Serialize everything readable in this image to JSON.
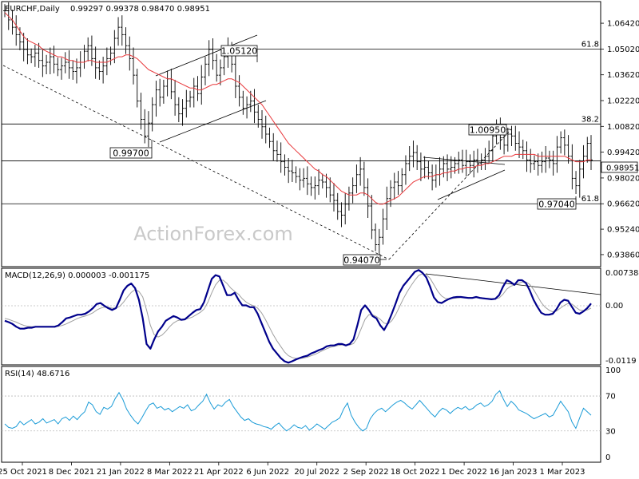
{
  "chart_data": [
    {
      "type": "candlestick",
      "title": "EURCHF,Daily",
      "ohlc_readout": "0.99297 0.99378 0.98470 0.98951",
      "y_ticks": [
        0.9386,
        0.9524,
        0.9662,
        0.9802,
        0.9942,
        1.0082,
        1.0222,
        1.0362,
        1.0502,
        1.0642
      ],
      "y_tick_labels": [
        "0.93860",
        "0.95240",
        "0.96620",
        "0.98020",
        "0.99420",
        "1.00820",
        "1.02220",
        "1.03620",
        "1.05020",
        "1.06420"
      ],
      "ylim": [
        0.9325,
        1.0755
      ],
      "x_labels": [
        "25 Oct 2021",
        "8 Dec 2021",
        "21 Jan 2022",
        "8 Mar 2022",
        "21 Apr 2022",
        "6 Jun 2022",
        "20 Jul 2022",
        "2 Sep 2022",
        "18 Oct 2022",
        "1 Dec 2022",
        "16 Jan 2023",
        "1 Mar 2023"
      ],
      "series": [
        {
          "values": [
            1.071,
            1.066,
            1.062,
            1.058,
            1.054,
            1.05,
            1.047,
            1.046,
            1.048,
            1.044,
            1.041,
            1.043,
            1.046,
            1.042,
            1.039,
            1.041,
            1.043,
            1.04,
            1.038,
            1.04,
            1.043,
            1.049,
            1.052,
            1.045,
            1.04,
            1.038,
            1.041,
            1.045,
            1.048,
            1.056,
            1.062,
            1.058,
            1.052,
            1.045,
            1.036,
            1.022,
            1.012,
            1.003,
            1.01,
            1.02,
            1.028,
            1.024,
            1.03,
            1.034,
            1.027,
            1.02,
            1.015,
            1.018,
            1.022,
            1.024,
            1.03,
            1.026,
            1.035,
            1.042,
            1.05,
            1.044,
            1.036,
            1.04,
            1.046,
            1.05,
            1.042,
            1.03,
            1.024,
            1.018,
            1.02,
            1.022,
            1.016,
            1.012,
            1.008,
            1.004,
            1.0,
            0.995,
            0.993,
            0.989,
            0.986,
            0.984,
            0.983,
            0.981,
            0.979,
            0.98,
            0.977,
            0.975,
            0.976,
            0.979,
            0.978,
            0.975,
            0.971,
            0.968,
            0.962,
            0.96,
            0.966,
            0.972,
            0.976,
            0.982,
            0.985,
            0.975,
            0.965,
            0.952,
            0.944,
            0.948,
            0.958,
            0.969,
            0.975,
            0.978,
            0.976,
            0.982,
            0.988,
            0.992,
            0.994,
            0.989,
            0.985,
            0.986,
            0.983,
            0.979,
            0.982,
            0.985,
            0.988,
            0.985,
            0.986,
            0.988,
            0.99,
            0.987,
            0.989,
            0.987,
            0.99,
            0.988,
            0.99,
            0.992,
            0.995,
            1.003,
            1.008,
            1.002,
            0.998,
            1.004,
            1.003,
            0.999,
            0.997,
            0.995,
            0.99,
            0.988,
            0.989,
            0.987,
            0.989,
            0.991,
            0.99,
            0.988,
            0.997,
            1.002,
            0.998,
            0.992,
            0.98,
            0.976,
            0.985,
            0.992,
            0.999,
            0.99
          ],
          "color": "#000000"
        },
        {
          "values": [
            1.07,
            1.068,
            1.066,
            1.063,
            1.06,
            1.057,
            1.055,
            1.054,
            1.053,
            1.052,
            1.05,
            1.049,
            1.048,
            1.047,
            1.046,
            1.046,
            1.045,
            1.044,
            1.044,
            1.043,
            1.043,
            1.043,
            1.044,
            1.044,
            1.043,
            1.043,
            1.043,
            1.043,
            1.044,
            1.045,
            1.046,
            1.046,
            1.047,
            1.047,
            1.046,
            1.045,
            1.043,
            1.041,
            1.039,
            1.038,
            1.037,
            1.036,
            1.035,
            1.034,
            1.034,
            1.033,
            1.032,
            1.031,
            1.03,
            1.029,
            1.029,
            1.028,
            1.028,
            1.029,
            1.03,
            1.031,
            1.031,
            1.032,
            1.033,
            1.034,
            1.034,
            1.033,
            1.032,
            1.03,
            1.028,
            1.026,
            1.024,
            1.022,
            1.02,
            1.017,
            1.014,
            1.011,
            1.008,
            1.005,
            1.002,
            0.999,
            0.997,
            0.995,
            0.993,
            0.991,
            0.989,
            0.987,
            0.985,
            0.984,
            0.982,
            0.981,
            0.979,
            0.977,
            0.975,
            0.973,
            0.972,
            0.971,
            0.971,
            0.971,
            0.972,
            0.972,
            0.971,
            0.969,
            0.967,
            0.966,
            0.966,
            0.967,
            0.968,
            0.969,
            0.97,
            0.972,
            0.974,
            0.976,
            0.978,
            0.979,
            0.98,
            0.981,
            0.981,
            0.981,
            0.982,
            0.982,
            0.983,
            0.983,
            0.984,
            0.984,
            0.985,
            0.985,
            0.986,
            0.986,
            0.986,
            0.987,
            0.987,
            0.988,
            0.988,
            0.989,
            0.99,
            0.991,
            0.992,
            0.992,
            0.992,
            0.993,
            0.993,
            0.993,
            0.993,
            0.993,
            0.993,
            0.992,
            0.992,
            0.992,
            0.992,
            0.992,
            0.992,
            0.992,
            0.992,
            0.991,
            0.99,
            0.989,
            0.989,
            0.989,
            0.99,
            0.99
          ],
          "color": "#e8383b"
        }
      ],
      "horizontal_lines": [
        {
          "value": 1.0502,
          "label": "61.8"
        },
        {
          "value": 1.0095,
          "label": "38.2"
        },
        {
          "value": 0.98951,
          "label": ""
        },
        {
          "value": 0.9662,
          "label": "61.8"
        }
      ],
      "annotations": [
        "1.05120",
        "0.99700",
        "1.00950",
        "0.97040",
        "0.94070"
      ],
      "current_price_label": "0.98951",
      "watermark": "ActionForex.com"
    },
    {
      "type": "line",
      "title": "MACD(12,26,9) 0.000003 -0.001175",
      "y_tick_labels": [
        "0.007384",
        "0.00",
        "-0.0119"
      ],
      "ylim": [
        -0.0128,
        0.0076
      ],
      "series": [
        {
          "values": [
            -0.0035,
            -0.0038,
            -0.0042,
            -0.0048,
            -0.0052,
            -0.0052,
            -0.005,
            -0.005,
            -0.0048,
            -0.0048,
            -0.0048,
            -0.0048,
            -0.0048,
            -0.0048,
            -0.0045,
            -0.0038,
            -0.003,
            -0.0028,
            -0.0025,
            -0.0022,
            -0.0022,
            -0.002,
            -0.0015,
            -0.0008,
            0.0001,
            0.0003,
            -0.0003,
            -0.0008,
            -0.0012,
            -0.0008,
            0.001,
            0.003,
            0.004,
            0.0045,
            0.0035,
            0.001,
            -0.003,
            -0.0085,
            -0.0095,
            -0.0075,
            -0.0058,
            -0.0048,
            -0.0035,
            -0.003,
            -0.0025,
            -0.0028,
            -0.0033,
            -0.0032,
            -0.0025,
            -0.0018,
            -0.0012,
            -0.001,
            0.0005,
            0.003,
            0.0055,
            0.0063,
            0.006,
            0.004,
            0.002,
            0.002,
            0.0025,
            0.001,
            -0.0002,
            -0.0002,
            -0.0006,
            -0.0006,
            -0.002,
            -0.004,
            -0.006,
            -0.008,
            -0.0095,
            -0.0105,
            -0.0115,
            -0.0122,
            -0.0125,
            -0.0122,
            -0.0118,
            -0.0115,
            -0.0112,
            -0.011,
            -0.0105,
            -0.0102,
            -0.0098,
            -0.0095,
            -0.009,
            -0.0088,
            -0.0088,
            -0.0085,
            -0.0085,
            -0.0088,
            -0.0085,
            -0.0075,
            -0.0045,
            -0.0012,
            -0.0002,
            -0.0012,
            -0.0025,
            -0.003,
            -0.0045,
            -0.0055,
            -0.004,
            -0.002,
            0.0002,
            0.0025,
            0.004,
            0.005,
            0.006,
            0.007,
            0.0074,
            0.0068,
            0.0058,
            0.0038,
            0.0015,
            0.0005,
            0.0003,
            0.0008,
            0.0012,
            0.0015,
            0.0016,
            0.0016,
            0.0015,
            0.0014,
            0.0014,
            0.0016,
            0.0014,
            0.0013,
            0.0012,
            0.0011,
            0.0012,
            0.002,
            0.0038,
            0.0052,
            0.0048,
            0.0042,
            0.0052,
            0.0052,
            0.0046,
            0.003,
            0.001,
            -0.0005,
            -0.0018,
            -0.0022,
            -0.0022,
            -0.002,
            -0.001,
            0.0004,
            0.001,
            0.0008,
            -0.0005,
            -0.0018,
            -0.002,
            -0.0015,
            -0.0008,
            0.0002
          ],
          "color": "#00008b"
        },
        {
          "values": [
            -0.003,
            -0.0032,
            -0.0035,
            -0.0038,
            -0.0042,
            -0.0045,
            -0.0047,
            -0.0048,
            -0.0048,
            -0.0048,
            -0.0048,
            -0.0048,
            -0.0048,
            -0.0048,
            -0.0047,
            -0.0045,
            -0.0042,
            -0.0038,
            -0.0034,
            -0.003,
            -0.0027,
            -0.0025,
            -0.0022,
            -0.0018,
            -0.0012,
            -0.0008,
            -0.0006,
            -0.0006,
            -0.0008,
            -0.0008,
            -0.0004,
            0.0005,
            0.0016,
            0.0026,
            0.0032,
            0.0028,
            0.0016,
            -0.0012,
            -0.0045,
            -0.0065,
            -0.007,
            -0.0066,
            -0.0058,
            -0.0048,
            -0.004,
            -0.0035,
            -0.0033,
            -0.0032,
            -0.003,
            -0.0027,
            -0.0022,
            -0.0017,
            -0.001,
            0.0005,
            0.0025,
            0.0042,
            0.0052,
            0.0052,
            0.0045,
            0.0035,
            0.0028,
            0.0022,
            0.0012,
            0.0005,
            0.0,
            -0.0003,
            -0.0008,
            -0.0018,
            -0.0032,
            -0.0048,
            -0.0064,
            -0.0078,
            -0.009,
            -0.0102,
            -0.011,
            -0.0114,
            -0.0116,
            -0.0116,
            -0.0115,
            -0.0113,
            -0.011,
            -0.0107,
            -0.0103,
            -0.0099,
            -0.0095,
            -0.0092,
            -0.009,
            -0.0088,
            -0.0087,
            -0.0087,
            -0.0087,
            -0.0084,
            -0.0072,
            -0.0052,
            -0.0032,
            -0.0022,
            -0.0022,
            -0.0026,
            -0.0032,
            -0.004,
            -0.0042,
            -0.0035,
            -0.0022,
            -0.0005,
            0.0012,
            0.0027,
            0.004,
            0.0052,
            0.0062,
            0.0066,
            0.0064,
            0.0056,
            0.0042,
            0.0028,
            0.0018,
            0.0013,
            0.0012,
            0.0013,
            0.0014,
            0.0015,
            0.0015,
            0.0015,
            0.0015,
            0.0015,
            0.0015,
            0.0014,
            0.0013,
            0.0012,
            0.0012,
            0.0014,
            0.0022,
            0.0033,
            0.0039,
            0.0042,
            0.0045,
            0.0048,
            0.0048,
            0.0043,
            0.0032,
            0.0018,
            0.0004,
            -0.0006,
            -0.0012,
            -0.0016,
            -0.0014,
            -0.0008,
            -0.0002,
            0.0002,
            0.0001,
            -0.0006,
            -0.0012,
            -0.0013,
            -0.0012,
            -0.0008
          ],
          "color": "#a0a0a0"
        }
      ]
    },
    {
      "type": "line",
      "title": "RSI(14) 48.6716",
      "y_tick_labels": [
        "100",
        "70",
        "30",
        "0"
      ],
      "y_ticks": [
        100,
        70,
        30,
        0
      ],
      "ylim": [
        -5,
        103
      ],
      "series": [
        {
          "values": [
            38,
            34,
            33,
            35,
            41,
            37,
            40,
            43,
            38,
            40,
            44,
            39,
            41,
            43,
            38,
            44,
            46,
            42,
            47,
            43,
            48,
            52,
            63,
            60,
            52,
            49,
            57,
            55,
            58,
            67,
            74,
            66,
            55,
            48,
            42,
            38,
            45,
            53,
            60,
            62,
            56,
            58,
            54,
            56,
            52,
            55,
            58,
            56,
            60,
            53,
            55,
            60,
            64,
            72,
            62,
            55,
            60,
            58,
            63,
            66,
            58,
            52,
            46,
            42,
            44,
            40,
            38,
            37,
            35,
            34,
            32,
            36,
            39,
            34,
            30,
            33,
            37,
            34,
            33,
            36,
            31,
            34,
            38,
            35,
            32,
            36,
            40,
            42,
            45,
            55,
            62,
            48,
            40,
            34,
            30,
            33,
            44,
            50,
            54,
            56,
            52,
            56,
            60,
            63,
            65,
            62,
            58,
            55,
            60,
            65,
            60,
            55,
            50,
            46,
            52,
            56,
            54,
            50,
            54,
            57,
            55,
            58,
            54,
            56,
            60,
            62,
            58,
            60,
            64,
            72,
            76,
            66,
            58,
            64,
            60,
            54,
            52,
            50,
            47,
            44,
            46,
            48,
            50,
            46,
            48,
            56,
            64,
            58,
            52,
            40,
            33,
            45,
            56,
            52,
            48
          ],
          "color": "#1a9bd7"
        }
      ]
    }
  ]
}
